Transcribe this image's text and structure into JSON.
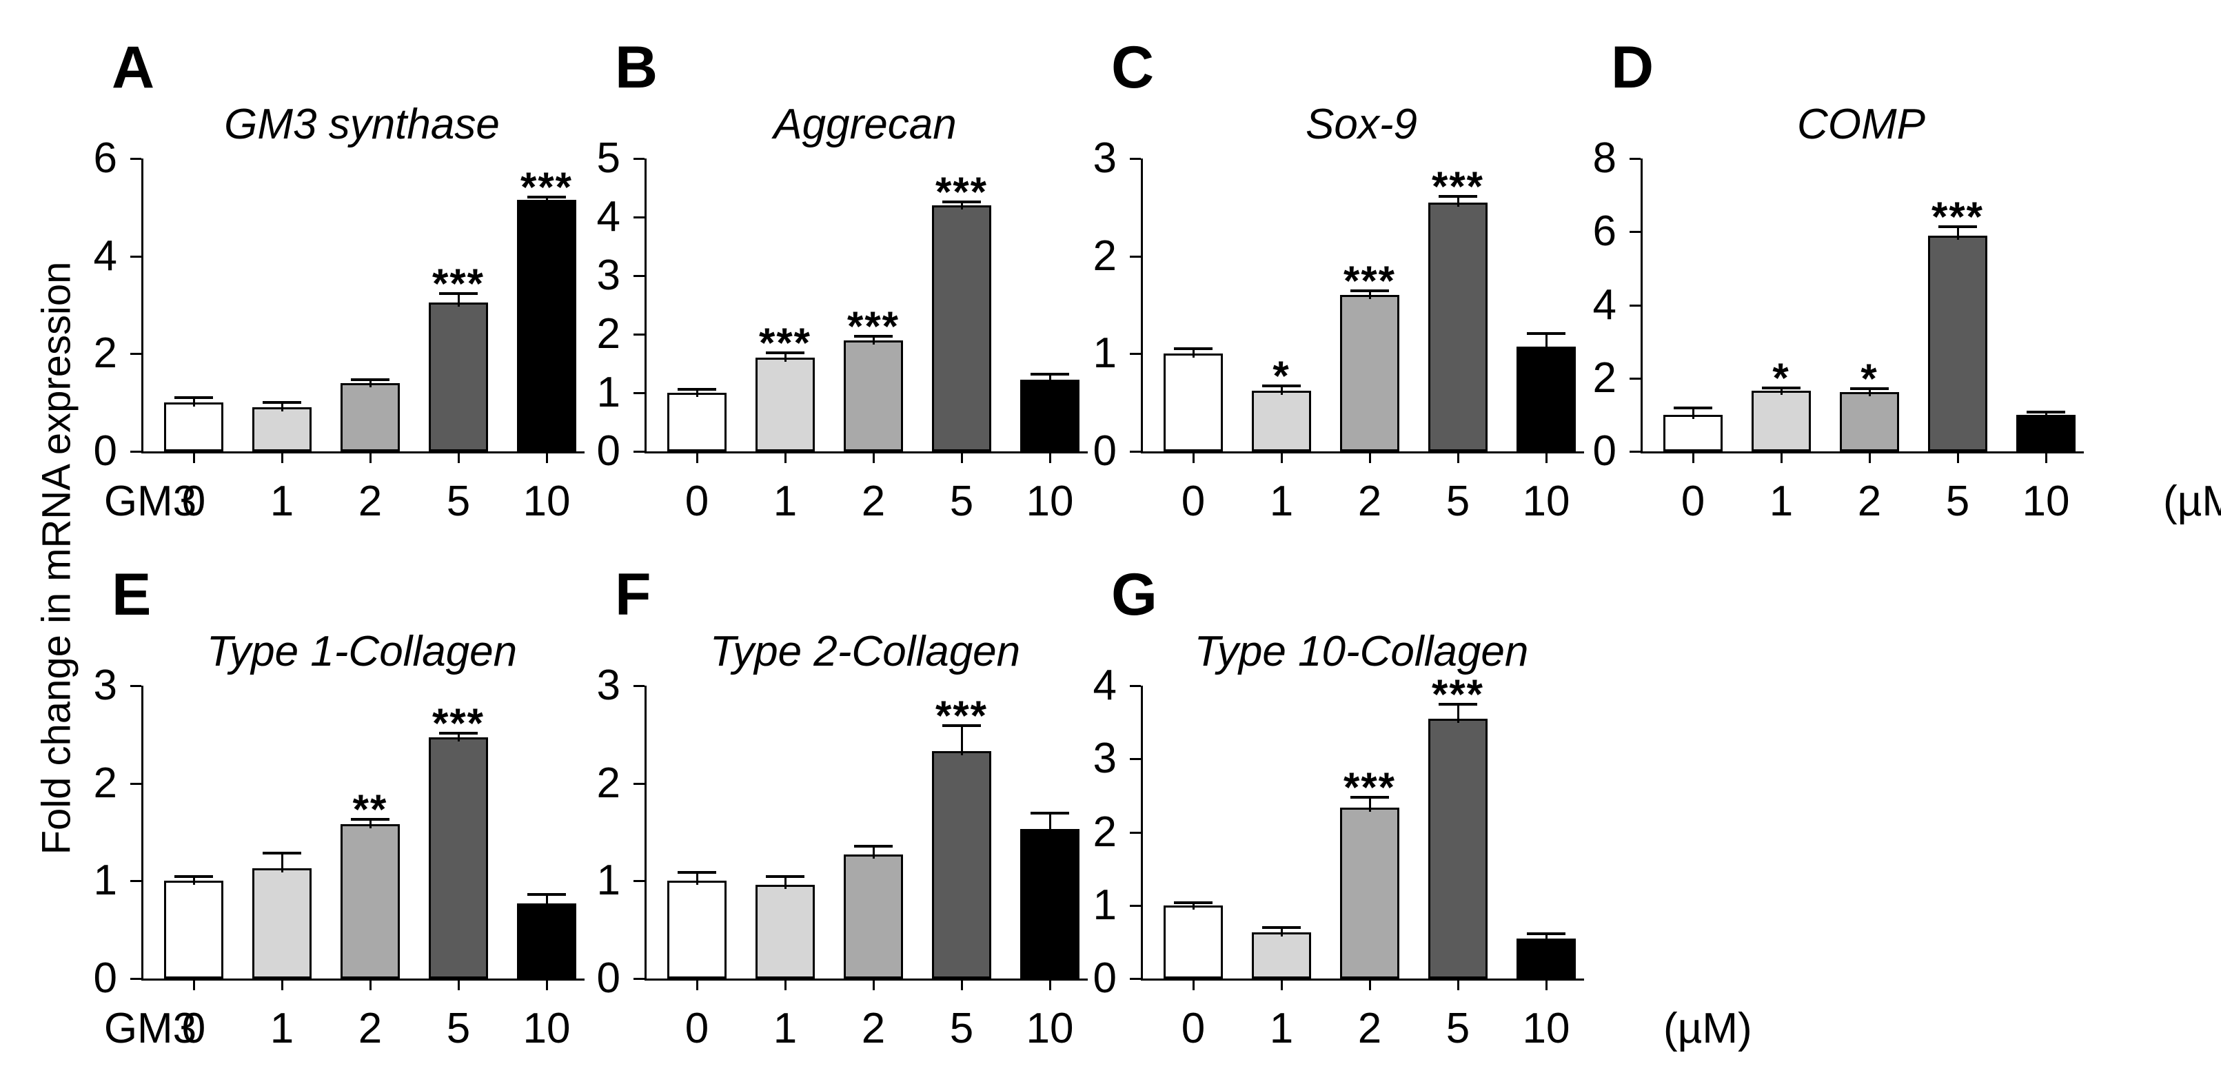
{
  "figure": {
    "y_axis_label": "Fold change in mRNA expression",
    "x_prefix_label": "GM3",
    "x_unit_label": "(µM)",
    "bar_colors": [
      "#ffffff",
      "#d6d6d6",
      "#a9a9a9",
      "#5b5b5b",
      "#000000"
    ],
    "categories": [
      "0",
      "1",
      "2",
      "5",
      "10"
    ]
  },
  "chart_data": [
    {
      "type": "bar",
      "panel_letter": "A",
      "title": "GM3 synthase",
      "row": 0,
      "col": 0,
      "show_prefix": true,
      "show_suffix": false,
      "categories": [
        "0",
        "1",
        "2",
        "5",
        "10"
      ],
      "values": [
        1.0,
        0.9,
        1.4,
        3.05,
        5.15
      ],
      "errors": [
        0.08,
        0.07,
        0.04,
        0.15,
        0.03
      ],
      "significance": [
        "",
        "",
        "",
        "***",
        "***"
      ],
      "ylim": [
        0,
        6
      ],
      "yticks": [
        0,
        2,
        4,
        6
      ],
      "xlabel": "",
      "ylabel": "Fold change in mRNA expression",
      "grid": false
    },
    {
      "type": "bar",
      "panel_letter": "B",
      "title": "Aggrecan",
      "row": 0,
      "col": 1,
      "show_prefix": false,
      "show_suffix": false,
      "categories": [
        "0",
        "1",
        "2",
        "5",
        "10"
      ],
      "values": [
        1.0,
        1.6,
        1.9,
        4.2,
        1.22
      ],
      "errors": [
        0.03,
        0.06,
        0.04,
        0.03,
        0.07
      ],
      "significance": [
        "",
        "***",
        "***",
        "***",
        ""
      ],
      "ylim": [
        0,
        5
      ],
      "yticks": [
        0,
        1,
        2,
        3,
        4,
        5
      ],
      "xlabel": "",
      "ylabel": "Fold change in mRNA expression",
      "grid": false
    },
    {
      "type": "bar",
      "panel_letter": "C",
      "title": "Sox-9",
      "row": 0,
      "col": 2,
      "show_prefix": false,
      "show_suffix": false,
      "categories": [
        "0",
        "1",
        "2",
        "5",
        "10"
      ],
      "values": [
        1.0,
        0.62,
        1.6,
        2.55,
        1.07
      ],
      "errors": [
        0.04,
        0.04,
        0.03,
        0.05,
        0.12
      ],
      "significance": [
        "",
        "*",
        "***",
        "***",
        ""
      ],
      "ylim": [
        0,
        3
      ],
      "yticks": [
        0,
        1,
        2,
        3
      ],
      "xlabel": "",
      "ylabel": "Fold change in mRNA expression",
      "grid": false
    },
    {
      "type": "bar",
      "panel_letter": "D",
      "title": "COMP",
      "row": 0,
      "col": 3,
      "show_prefix": false,
      "show_suffix": true,
      "categories": [
        "0",
        "1",
        "2",
        "5",
        "10"
      ],
      "values": [
        1.0,
        1.65,
        1.62,
        5.9,
        1.0
      ],
      "errors": [
        0.15,
        0.05,
        0.06,
        0.2,
        0.04
      ],
      "significance": [
        "",
        "*",
        "*",
        "***",
        ""
      ],
      "ylim": [
        0,
        8
      ],
      "yticks": [
        0,
        2,
        4,
        6,
        8
      ],
      "xlabel": "",
      "ylabel": "Fold change in mRNA expression",
      "grid": false
    },
    {
      "type": "bar",
      "panel_letter": "E",
      "title": "Type 1-Collagen",
      "row": 1,
      "col": 0,
      "show_prefix": true,
      "show_suffix": false,
      "categories": [
        "0",
        "1",
        "2",
        "5",
        "10"
      ],
      "values": [
        1.0,
        1.13,
        1.58,
        2.47,
        0.77
      ],
      "errors": [
        0.03,
        0.14,
        0.04,
        0.03,
        0.08
      ],
      "significance": [
        "",
        "",
        "**",
        "***",
        ""
      ],
      "ylim": [
        0,
        3
      ],
      "yticks": [
        0,
        1,
        2,
        3
      ],
      "xlabel": "",
      "ylabel": "Fold change in mRNA expression",
      "grid": false
    },
    {
      "type": "bar",
      "panel_letter": "F",
      "title": "Type 2-Collagen",
      "row": 1,
      "col": 1,
      "show_prefix": false,
      "show_suffix": false,
      "categories": [
        "0",
        "1",
        "2",
        "5",
        "10"
      ],
      "values": [
        1.0,
        0.96,
        1.27,
        2.33,
        1.53
      ],
      "errors": [
        0.07,
        0.07,
        0.07,
        0.25,
        0.15
      ],
      "significance": [
        "",
        "",
        "",
        "***",
        ""
      ],
      "ylim": [
        0,
        3
      ],
      "yticks": [
        0,
        1,
        2,
        3
      ],
      "xlabel": "",
      "ylabel": "Fold change in mRNA expression",
      "grid": false
    },
    {
      "type": "bar",
      "panel_letter": "G",
      "title": "Type 10-Collagen",
      "row": 1,
      "col": 2,
      "show_prefix": false,
      "show_suffix": true,
      "categories": [
        "0",
        "1",
        "2",
        "5",
        "10"
      ],
      "values": [
        1.0,
        0.63,
        2.33,
        3.55,
        0.55
      ],
      "errors": [
        0.02,
        0.05,
        0.13,
        0.18,
        0.04
      ],
      "significance": [
        "",
        "",
        "***",
        "***",
        ""
      ],
      "ylim": [
        0,
        4
      ],
      "yticks": [
        0,
        1,
        2,
        3,
        4
      ],
      "xlabel": "",
      "ylabel": "Fold change in mRNA expression",
      "grid": false
    }
  ]
}
